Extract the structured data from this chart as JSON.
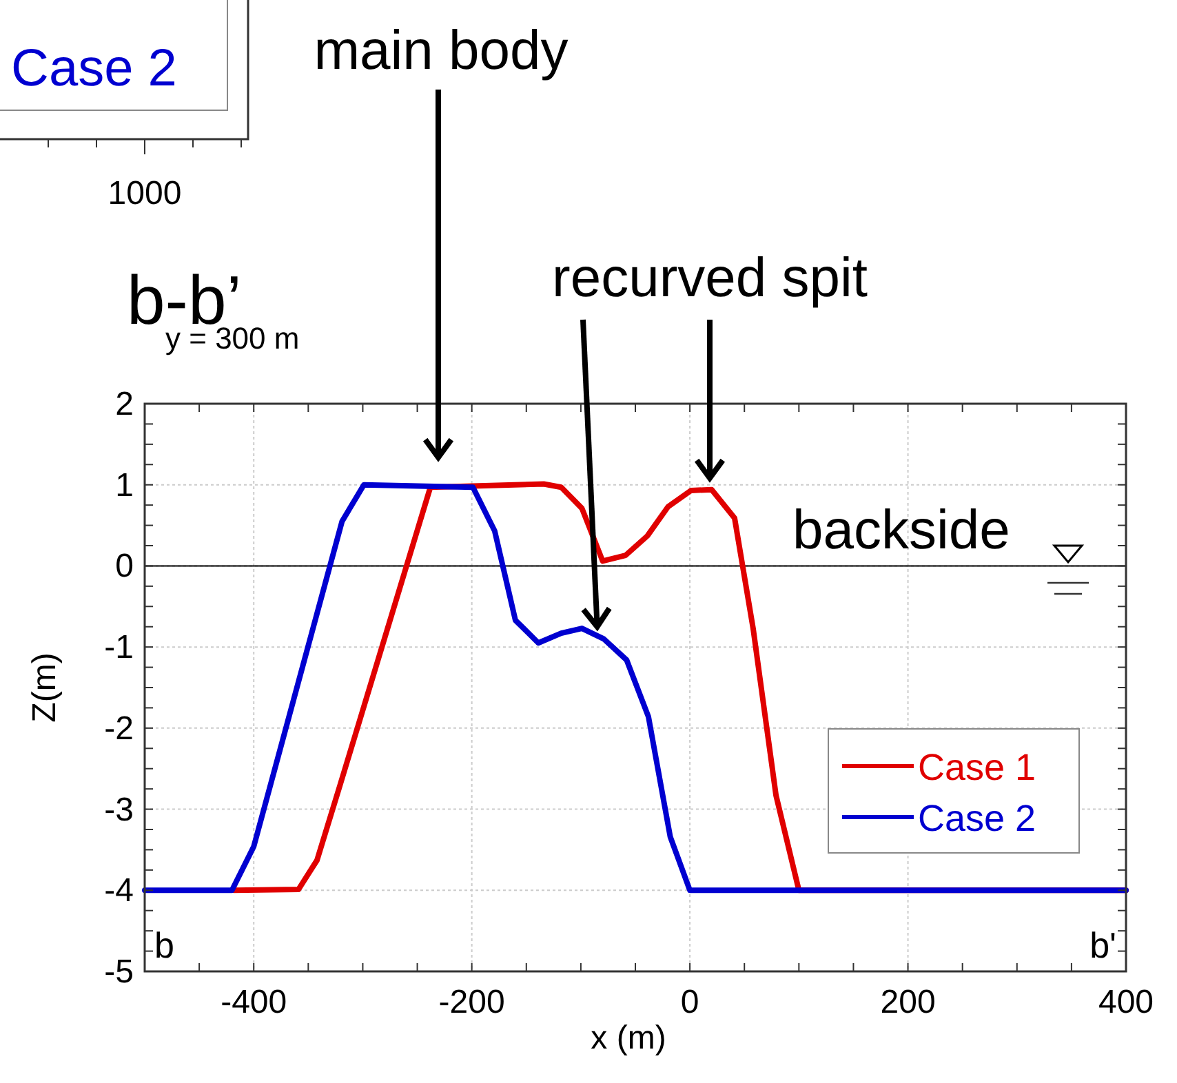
{
  "chart_data": {
    "type": "line",
    "title": "b-b’",
    "subtitle": "y = 300 m",
    "xlabel": "x (m)",
    "ylabel": "Z(m)",
    "xlim": [
      -500,
      400
    ],
    "xticks": [
      -400,
      -200,
      0,
      200,
      400
    ],
    "ylim": [
      -5,
      2
    ],
    "yticks": [
      -5,
      -4,
      -3,
      -2,
      -1,
      0,
      1,
      2
    ],
    "grid": true,
    "legend": "bottom right",
    "line_style": "solid",
    "marker": "none",
    "ref_lines": [
      {
        "axis": "y",
        "value": 0,
        "color": "#000000"
      }
    ],
    "annotations": [
      "Case 2",
      "1000",
      "main body",
      {
        "text": "recurved spit",
        "x": -85,
        "y": -0.75
      },
      "backside",
      "b",
      "b'"
    ],
    "series": [
      {
        "name": "Case 1",
        "color": "#e00000",
        "x": [
          -418,
          -359,
          -342,
          -321,
          -238,
          -134,
          -118,
          -99,
          -80,
          -59,
          -39,
          -20,
          1,
          20,
          41,
          58,
          79,
          100,
          400
        ],
        "values": [
          -4,
          -3.99,
          -3.63,
          -2.71,
          0.97,
          1.01,
          0.97,
          0.71,
          0.06,
          0.13,
          0.37,
          0.73,
          0.93,
          0.94,
          0.59,
          -0.77,
          -2.83,
          -4,
          -4
        ]
      },
      {
        "name": "Case 2",
        "color": "#0000d0",
        "x": [
          -500,
          -420,
          -400,
          -319,
          -299,
          -199,
          -179,
          -160,
          -139,
          -118,
          -99,
          -79,
          -58,
          -38,
          -18,
          0,
          400
        ],
        "values": [
          -4,
          -4,
          -3.46,
          0.55,
          1,
          0.97,
          0.43,
          -0.67,
          -0.95,
          -0.83,
          -0.77,
          -0.9,
          -1.16,
          -1.86,
          -3.34,
          -4,
          -4
        ]
      }
    ]
  }
}
